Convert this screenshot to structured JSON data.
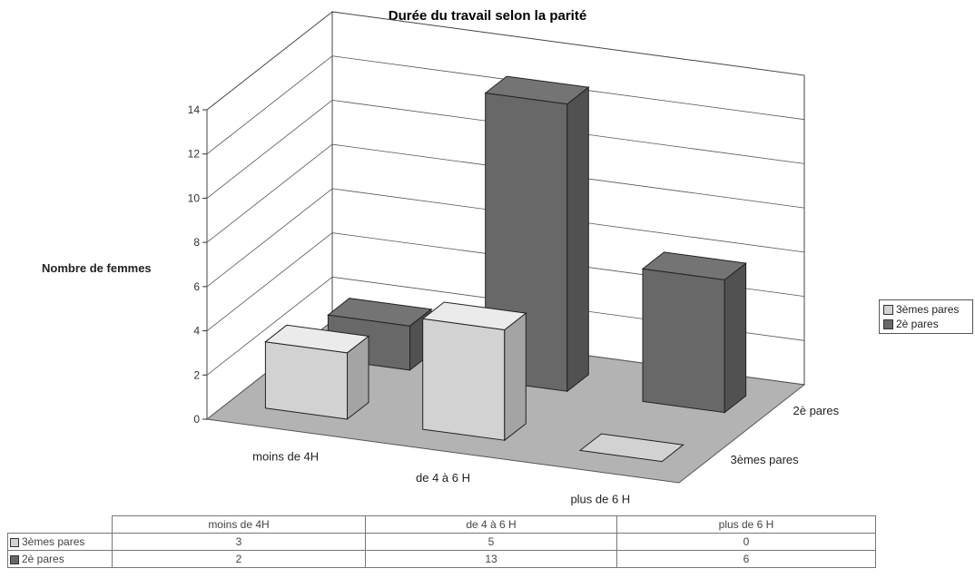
{
  "chart_data": {
    "type": "bar",
    "title": "Durée du travail selon la parité",
    "ylabel": "Nombre de femmes",
    "xlabel": "",
    "categories": [
      "moins de 4H",
      "de 4 à 6 H",
      "plus de 6 H"
    ],
    "series": [
      {
        "name": "3èmes pares",
        "values": [
          3,
          5,
          0
        ],
        "color": "#d2d2d2"
      },
      {
        "name": "2è pares",
        "values": [
          2,
          13,
          6
        ],
        "color": "#686868"
      }
    ],
    "yticks": [
      "0",
      "2",
      "4",
      "6",
      "8",
      "10",
      "12",
      "14"
    ],
    "ylim": [
      0,
      14
    ],
    "grid": true,
    "legend_position": "right",
    "data_table": true
  }
}
